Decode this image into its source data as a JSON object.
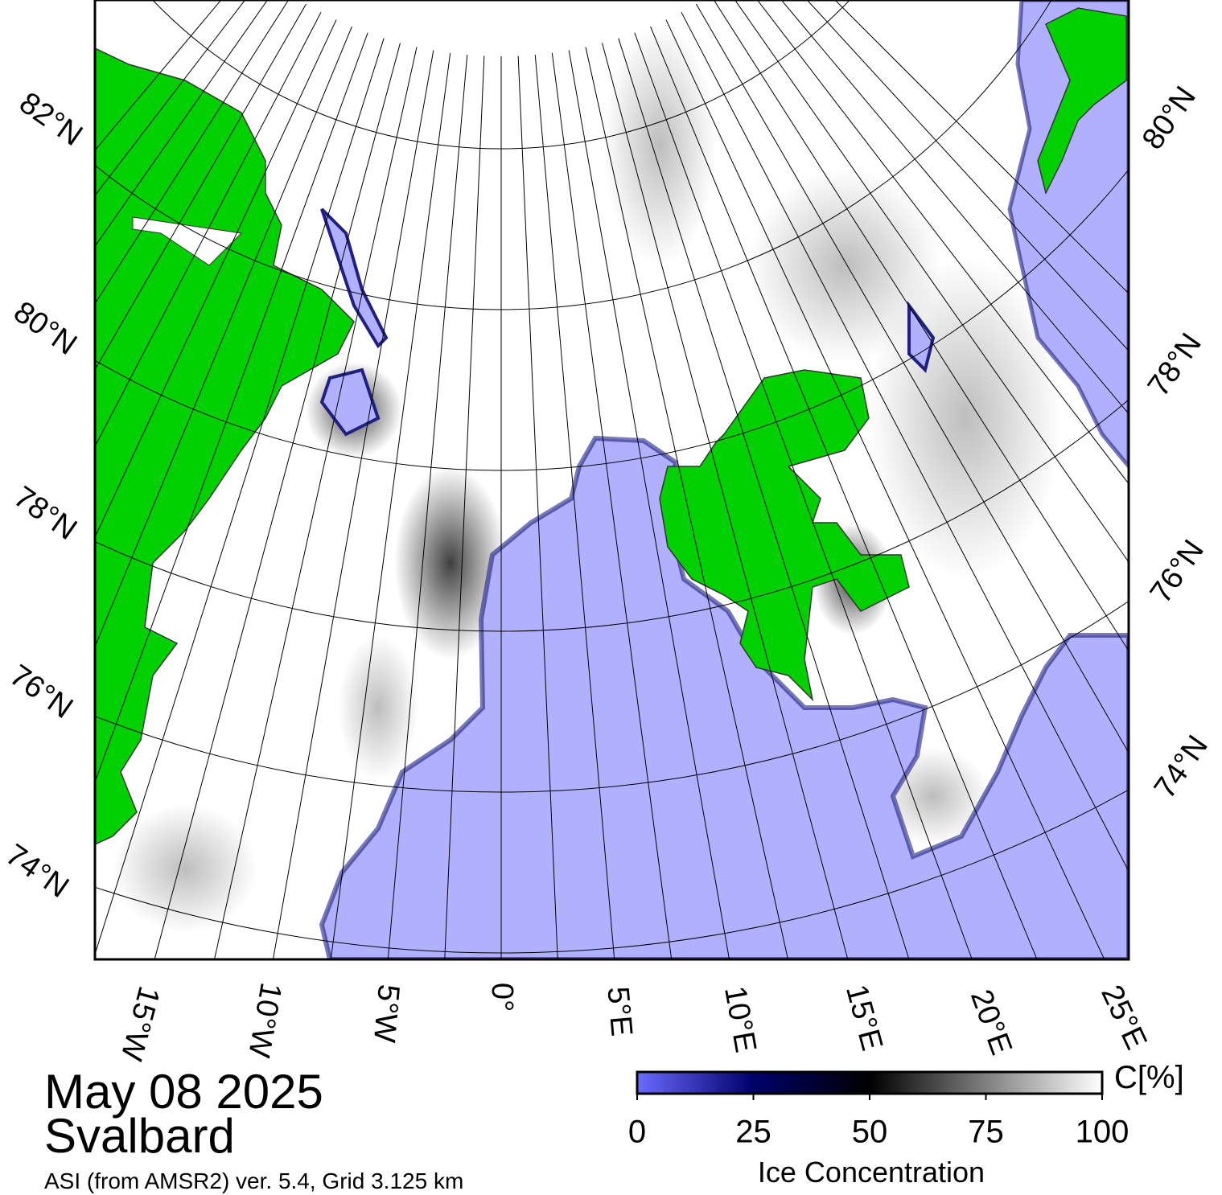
{
  "map": {
    "lat_labels_left": [
      "82°N",
      "80°N",
      "78°N",
      "76°N",
      "74°N"
    ],
    "lat_labels_right": [
      "80°N",
      "78°N",
      "76°N",
      "74°N"
    ],
    "lon_labels": [
      "15°W",
      "10°W",
      "5°W",
      "0°",
      "5°E",
      "10°E",
      "15°E",
      "20°E",
      "25°E"
    ]
  },
  "legend": {
    "title": "Ice Concentration",
    "unit": "C[%]",
    "lim": [
      0,
      100
    ],
    "ticks": [
      0,
      25,
      50,
      75,
      100
    ]
  },
  "footer": {
    "date": "May 08 2025",
    "region": "Svalbard",
    "source": "ASI (from AMSR2) ver. 5.4,  Grid 3.125 km"
  }
}
